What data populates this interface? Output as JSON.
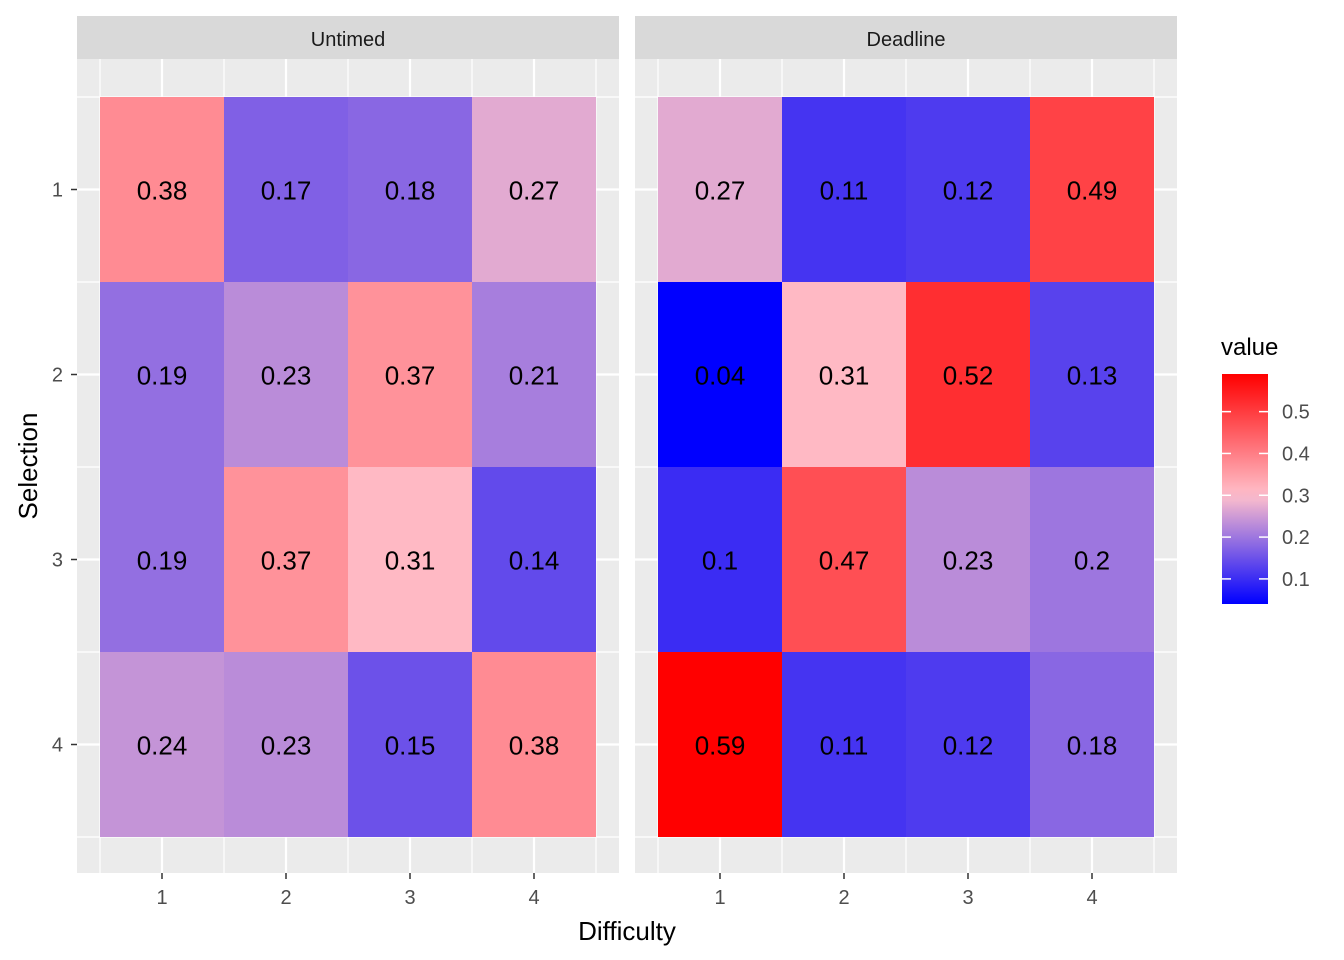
{
  "chart_data": {
    "type": "heatmap",
    "title": "",
    "xlabel": "Difficulty",
    "ylabel": "Selection",
    "x_categories": [
      "1",
      "2",
      "3",
      "4"
    ],
    "y_categories": [
      "1",
      "2",
      "3",
      "4"
    ],
    "grid": true,
    "legend": {
      "title": "value",
      "placement": "right",
      "ticks": [
        "0.1",
        "0.2",
        "0.3",
        "0.4",
        "0.5"
      ],
      "tick_values": [
        0.1,
        0.2,
        0.3,
        0.4,
        0.5
      ],
      "range": [
        0.04,
        0.59
      ]
    },
    "colors": {
      "low": "#0000ff",
      "mid": "#ffc0cb",
      "high": "#ff0000",
      "midpoint": 0.3
    },
    "panels": [
      {
        "name": "Untimed",
        "values": [
          [
            0.38,
            0.17,
            0.18,
            0.27
          ],
          [
            0.19,
            0.23,
            0.37,
            0.21
          ],
          [
            0.19,
            0.37,
            0.31,
            0.14
          ],
          [
            0.24,
            0.23,
            0.15,
            0.38
          ]
        ],
        "labels": [
          [
            "0.38",
            "0.17",
            "0.18",
            "0.27"
          ],
          [
            "0.19",
            "0.23",
            "0.37",
            "0.21"
          ],
          [
            "0.19",
            "0.37",
            "0.31",
            "0.14"
          ],
          [
            "0.24",
            "0.23",
            "0.15",
            "0.38"
          ]
        ]
      },
      {
        "name": "Deadline",
        "values": [
          [
            0.27,
            0.11,
            0.12,
            0.49
          ],
          [
            0.04,
            0.31,
            0.52,
            0.13
          ],
          [
            0.1,
            0.47,
            0.23,
            0.2
          ],
          [
            0.59,
            0.11,
            0.12,
            0.18
          ]
        ],
        "labels": [
          [
            "0.27",
            "0.11",
            "0.12",
            "0.49"
          ],
          [
            "0.04",
            "0.31",
            "0.52",
            "0.13"
          ],
          [
            "0.1",
            "0.47",
            "0.23",
            "0.2"
          ],
          [
            "0.59",
            "0.11",
            "0.12",
            "0.18"
          ]
        ]
      }
    ]
  }
}
